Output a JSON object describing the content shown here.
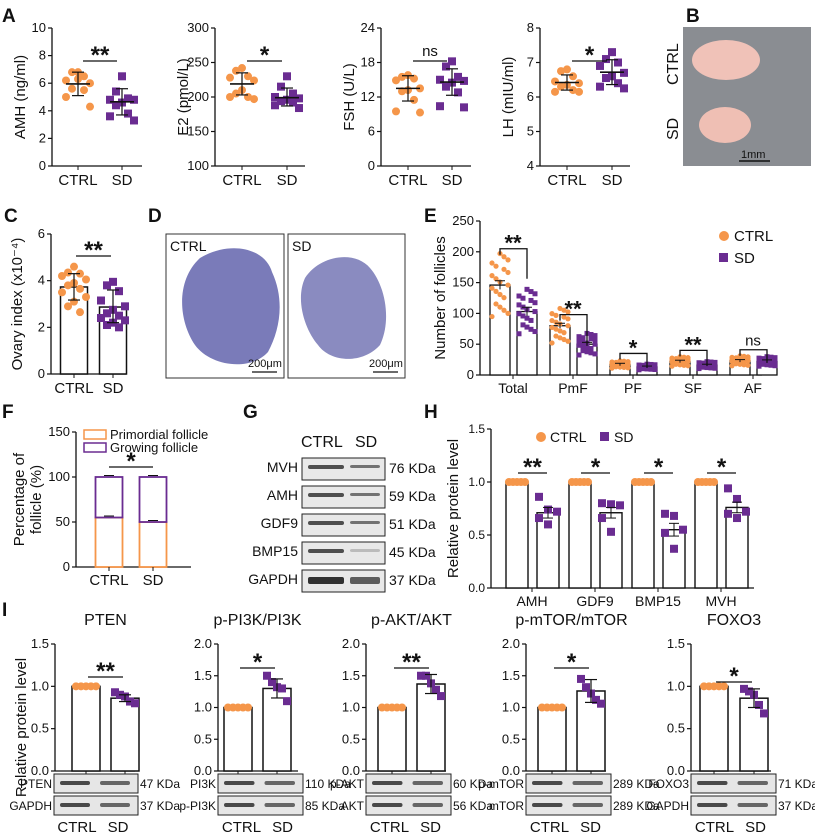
{
  "colors": {
    "ctrl": "#F5964A",
    "sd": "#6A2C91",
    "axis": "#111111"
  },
  "panel_labels": [
    "A",
    "B",
    "C",
    "D",
    "E",
    "F",
    "G",
    "H",
    "I"
  ],
  "chart_data": [
    {
      "id": "A1",
      "type": "scatter",
      "title": "",
      "ylabel": "AMH (ng/ml)",
      "categories": [
        "CTRL",
        "SD"
      ],
      "ylim": [
        0,
        10
      ],
      "yticks": [
        0,
        2,
        4,
        6,
        8,
        10
      ],
      "series": [
        {
          "name": "CTRL",
          "mean": 5.95,
          "sd_low": 5.1,
          "sd_high": 6.8,
          "points": [
            6.8,
            6.8,
            6.5,
            6.2,
            6.0,
            6.3,
            5.6,
            5.5,
            5.0,
            4.3
          ]
        },
        {
          "name": "SD",
          "mean": 4.65,
          "sd_low": 3.7,
          "sd_high": 5.6,
          "points": [
            6.5,
            5.4,
            4.9,
            4.8,
            4.8,
            4.6,
            4.4,
            3.8,
            3.6,
            3.3
          ]
        }
      ],
      "significance": "**"
    },
    {
      "id": "A2",
      "type": "scatter",
      "ylabel": "E2 (pmol/L)",
      "categories": [
        "CTRL",
        "SD"
      ],
      "ylim": [
        100,
        300
      ],
      "yticks": [
        100,
        150,
        200,
        250,
        300
      ],
      "series": [
        {
          "name": "CTRL",
          "mean": 219,
          "sd_low": 203,
          "sd_high": 235,
          "points": [
            242,
            238,
            230,
            228,
            224,
            210,
            205,
            200,
            200,
            197
          ]
        },
        {
          "name": "SD",
          "mean": 199,
          "sd_low": 187,
          "sd_high": 213,
          "points": [
            230,
            215,
            205,
            200,
            198,
            196,
            194,
            192,
            188,
            184
          ]
        }
      ],
      "significance": "*"
    },
    {
      "id": "A3",
      "type": "scatter",
      "ylabel": "FSH (U/L)",
      "categories": [
        "CTRL",
        "SD"
      ],
      "ylim": [
        0,
        24
      ],
      "yticks": [
        0,
        6,
        12,
        18,
        24
      ],
      "series": [
        {
          "name": "CTRL",
          "mean": 13.5,
          "sd_low": 11.3,
          "sd_high": 15.7,
          "points": [
            15.8,
            15.5,
            15.2,
            14.9,
            13.5,
            13.2,
            13.0,
            11.5,
            9.5,
            9.3
          ]
        },
        {
          "name": "SD",
          "mean": 14.6,
          "sd_low": 12.3,
          "sd_high": 16.9,
          "points": [
            18.2,
            17.3,
            15.5,
            15.0,
            14.8,
            14.5,
            13.8,
            12.8,
            10.4,
            10.2
          ]
        }
      ],
      "significance": "ns"
    },
    {
      "id": "A4",
      "type": "scatter",
      "ylabel": "LH (mIU/ml)",
      "categories": [
        "CTRL",
        "SD"
      ],
      "ylim": [
        4,
        8
      ],
      "yticks": [
        4,
        5,
        6,
        7,
        8
      ],
      "series": [
        {
          "name": "CTRL",
          "mean": 6.42,
          "sd_low": 6.2,
          "sd_high": 6.64,
          "points": [
            6.8,
            6.75,
            6.6,
            6.45,
            6.4,
            6.35,
            6.3,
            6.2,
            6.15,
            6.15
          ]
        },
        {
          "name": "SD",
          "mean": 6.72,
          "sd_low": 6.36,
          "sd_high": 7.08,
          "points": [
            7.3,
            7.1,
            7.0,
            6.9,
            6.7,
            6.6,
            6.55,
            6.4,
            6.3,
            6.25
          ]
        }
      ],
      "significance": "*"
    },
    {
      "id": "C",
      "type": "bar",
      "ylabel": "Ovary index (x10⁻⁴)",
      "categories": [
        "CTRL",
        "SD"
      ],
      "ylim": [
        0,
        6
      ],
      "yticks": [
        0,
        2,
        4,
        6
      ],
      "series": [
        {
          "name": "CTRL",
          "mean": 3.73,
          "err_low": 3.17,
          "err_high": 4.3,
          "points": [
            4.6,
            4.35,
            4.3,
            4.2,
            4.05,
            3.9,
            3.8,
            3.65,
            3.5,
            3.3,
            3.1,
            2.9,
            2.65
          ]
        },
        {
          "name": "SD",
          "mean": 2.87,
          "err_low": 2.2,
          "err_high": 3.6,
          "points": [
            3.95,
            3.8,
            3.55,
            3.15,
            2.9,
            2.75,
            2.6,
            2.5,
            2.4,
            2.3,
            2.2,
            2.1,
            2.0
          ]
        }
      ],
      "significance": "**"
    },
    {
      "id": "E",
      "type": "bar",
      "ylabel": "Number of follicles",
      "categories": [
        "Total",
        "PmF",
        "PF",
        "SF",
        "AF"
      ],
      "ylim": [
        0,
        250
      ],
      "yticks": [
        0,
        50,
        100,
        150,
        200,
        250
      ],
      "legend": [
        "CTRL",
        "SD"
      ],
      "legend_position": "top-right",
      "series": [
        {
          "name": "CTRL",
          "means": [
            146,
            80,
            17,
            22,
            23
          ],
          "errs": [
            7,
            4,
            2,
            2,
            2
          ]
        },
        {
          "name": "SD",
          "means": [
            103,
            50,
            13,
            16,
            22
          ],
          "errs": [
            7,
            3,
            1.5,
            1.5,
            2.5
          ]
        }
      ],
      "significance": [
        "**",
        "**",
        "*",
        "**",
        "ns"
      ]
    },
    {
      "id": "F",
      "type": "bar",
      "stacked": true,
      "ylabel": "Percentage of follicle (%)",
      "ylabel_lines": [
        "Percentage of",
        "follicle (%)"
      ],
      "categories": [
        "CTRL",
        "SD"
      ],
      "ylim": [
        0,
        150
      ],
      "yticks": [
        0,
        50,
        100,
        150
      ],
      "legend": [
        "Primordial follicle",
        "Growing follicle"
      ],
      "legend_position": "top-left",
      "series": [
        {
          "name": "Primordial follicle",
          "values": [
            55,
            50
          ]
        },
        {
          "name": "Growing follicle",
          "values": [
            45,
            50
          ]
        }
      ],
      "significance": "*"
    },
    {
      "id": "H",
      "type": "bar",
      "ylabel": "Relative protein level",
      "categories": [
        "AMH",
        "GDF9",
        "BMP15",
        "MVH"
      ],
      "ylim": [
        0,
        1.5
      ],
      "yticks": [
        "0.0",
        "0.5",
        "1.0",
        "1.5"
      ],
      "legend": [
        "CTRL",
        "SD"
      ],
      "legend_position": "top-left",
      "series": [
        {
          "name": "CTRL",
          "means": [
            1.0,
            1.0,
            1.0,
            1.0
          ],
          "errs": [
            0,
            0,
            0,
            0
          ]
        },
        {
          "name": "SD",
          "means": [
            0.71,
            0.71,
            0.55,
            0.76
          ],
          "errs": [
            0.05,
            0.05,
            0.06,
            0.05
          ],
          "points": [
            [
              0.86,
              0.74,
              0.72,
              0.66,
              0.6
            ],
            [
              0.8,
              0.79,
              0.78,
              0.66,
              0.53
            ],
            [
              0.7,
              0.68,
              0.55,
              0.52,
              0.37
            ],
            [
              0.94,
              0.84,
              0.72,
              0.7,
              0.66
            ]
          ]
        }
      ],
      "significance": [
        "**",
        "*",
        "*",
        "*"
      ]
    },
    {
      "id": "I1",
      "type": "bar",
      "title": "PTEN",
      "ylabel": "Relative protein level",
      "categories": [
        "CTRL",
        "SD"
      ],
      "ylim": [
        0,
        1.5
      ],
      "yticks": [
        "0.0",
        "0.5",
        "1.0",
        "1.5"
      ],
      "series": [
        {
          "name": "CTRL",
          "mean": 1.0,
          "err": 0
        },
        {
          "name": "SD",
          "mean": 0.86,
          "err": 0.04,
          "points": [
            0.93,
            0.9,
            0.88,
            0.82,
            0.8
          ]
        }
      ],
      "significance": "**"
    },
    {
      "id": "I2",
      "type": "bar",
      "title": "p-PI3K/PI3K",
      "ylabel": "",
      "categories": [
        "CTRL",
        "SD"
      ],
      "ylim": [
        0,
        2
      ],
      "yticks": [
        "0.0",
        "0.5",
        "1.0",
        "1.5",
        "2.0"
      ],
      "series": [
        {
          "name": "CTRL",
          "mean": 1.0,
          "err": 0
        },
        {
          "name": "SD",
          "mean": 1.3,
          "err": 0.15,
          "points": [
            1.5,
            1.4,
            1.32,
            1.3,
            1.1
          ]
        }
      ],
      "significance": "*"
    },
    {
      "id": "I3",
      "type": "bar",
      "title": "p-AKT/AKT",
      "ylabel": "",
      "categories": [
        "CTRL",
        "SD"
      ],
      "ylim": [
        0,
        2
      ],
      "yticks": [
        "0.0",
        "0.5",
        "1.0",
        "1.5",
        "2.0"
      ],
      "series": [
        {
          "name": "CTRL",
          "mean": 1.0,
          "err": 0
        },
        {
          "name": "SD",
          "mean": 1.37,
          "err": 0.15,
          "points": [
            1.5,
            1.5,
            1.38,
            1.28,
            1.18
          ]
        }
      ],
      "significance": "**"
    },
    {
      "id": "I4",
      "type": "bar",
      "title": "p-mTOR/mTOR",
      "ylabel": "",
      "categories": [
        "CTRL",
        "SD"
      ],
      "ylim": [
        0,
        2
      ],
      "yticks": [
        "0.0",
        "0.5",
        "1.0",
        "1.5",
        "2.0"
      ],
      "series": [
        {
          "name": "CTRL",
          "mean": 1.0,
          "err": 0
        },
        {
          "name": "SD",
          "mean": 1.26,
          "err": 0.18,
          "points": [
            1.45,
            1.32,
            1.22,
            1.12,
            1.06
          ]
        }
      ],
      "significance": "*"
    },
    {
      "id": "I5",
      "type": "bar",
      "title": "FOXO3",
      "ylabel": "",
      "categories": [
        "CTRL",
        "SD"
      ],
      "ylim": [
        0,
        1.5
      ],
      "yticks": [
        "0.0",
        "0.5",
        "1.0",
        "1.5"
      ],
      "series": [
        {
          "name": "CTRL",
          "mean": 1.0,
          "err": 0
        },
        {
          "name": "SD",
          "mean": 0.86,
          "err": 0.11,
          "points": [
            0.97,
            0.94,
            0.9,
            0.78,
            0.68
          ]
        }
      ],
      "significance": "*"
    }
  ],
  "panel_B": {
    "labels": [
      "CTRL",
      "SD"
    ],
    "scale_bar": "1mm"
  },
  "panel_D": {
    "images": [
      {
        "label": "CTRL",
        "scale_bar": "200μm"
      },
      {
        "label": "SD",
        "scale_bar": "200μm"
      }
    ]
  },
  "panel_G": {
    "columns": [
      "CTRL",
      "SD"
    ],
    "rows": [
      {
        "protein": "MVH",
        "kda": "76 KDa"
      },
      {
        "protein": "AMH",
        "kda": "59 KDa"
      },
      {
        "protein": "GDF9",
        "kda": "51 KDa"
      },
      {
        "protein": "BMP15",
        "kda": "45 KDa"
      },
      {
        "protein": "GAPDH",
        "kda": "37 KDa"
      }
    ]
  },
  "panel_I_blots": [
    {
      "rows": [
        {
          "protein": "PTEN",
          "kda": "47 KDa"
        },
        {
          "protein": "GAPDH",
          "kda": "37 KDa"
        }
      ]
    },
    {
      "rows": [
        {
          "protein": "PI3K",
          "kda": "110 KDa"
        },
        {
          "protein": "p-PI3K",
          "kda": "85 KDa"
        }
      ]
    },
    {
      "rows": [
        {
          "protein": "p-AKT",
          "kda": "60 KDa"
        },
        {
          "protein": "AKT",
          "kda": "56 KDa"
        }
      ]
    },
    {
      "rows": [
        {
          "protein": "p-mTOR",
          "kda": "289 KDa"
        },
        {
          "protein": "mTOR",
          "kda": "289 KDa"
        }
      ]
    },
    {
      "rows": [
        {
          "protein": "FOXO3",
          "kda": "71 KDa"
        },
        {
          "protein": "GAPDH",
          "kda": "37 KDa"
        }
      ]
    }
  ],
  "x_labels": [
    "CTRL",
    "SD"
  ]
}
